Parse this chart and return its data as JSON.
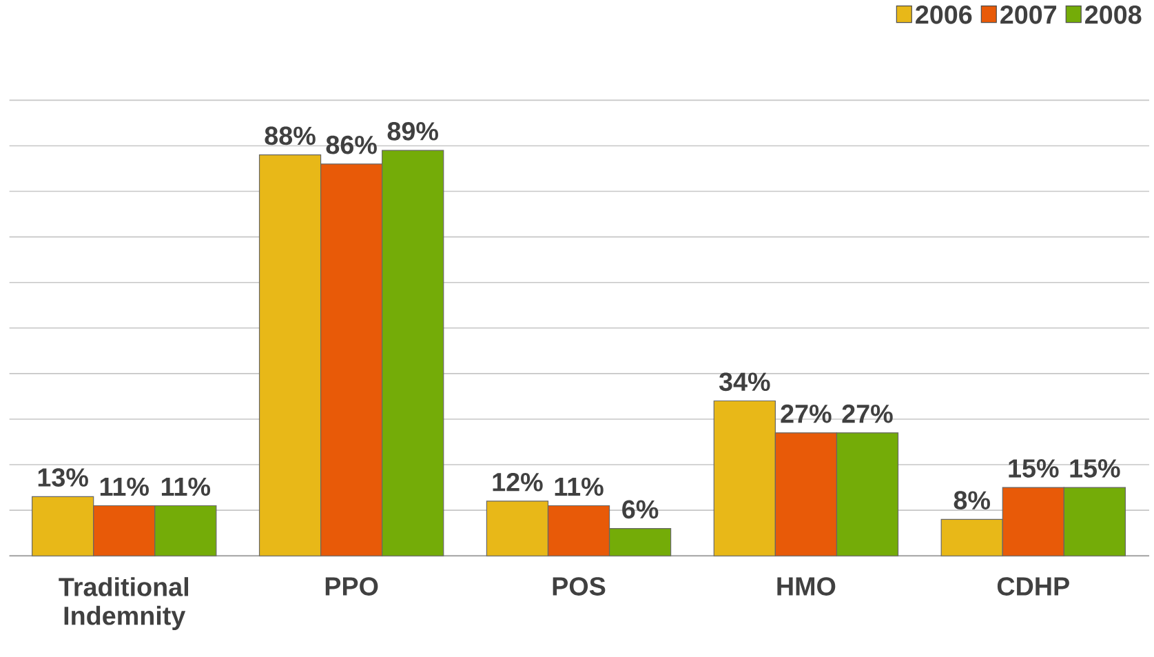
{
  "chart_data": {
    "type": "bar",
    "categories": [
      "Traditional Indemnity",
      "PPO",
      "POS",
      "HMO",
      "CDHP"
    ],
    "series": [
      {
        "name": "2006",
        "color": "#e8b818",
        "values": [
          13,
          88,
          12,
          34,
          8
        ],
        "value_labels": [
          "13%",
          "88%",
          "12%",
          "34%",
          "8%"
        ]
      },
      {
        "name": "2007",
        "color": "#e85a08",
        "values": [
          11,
          86,
          11,
          27,
          15
        ],
        "value_labels": [
          "11%",
          "86%",
          "11%",
          "27%",
          "15%"
        ]
      },
      {
        "name": "2008",
        "color": "#74ac08",
        "values": [
          11,
          89,
          6,
          27,
          15
        ],
        "value_labels": [
          "11%",
          "89%",
          "6%",
          "27%",
          "15%"
        ]
      }
    ],
    "grid": "y",
    "legend": "top right",
    "tick_labels": "x"
  }
}
